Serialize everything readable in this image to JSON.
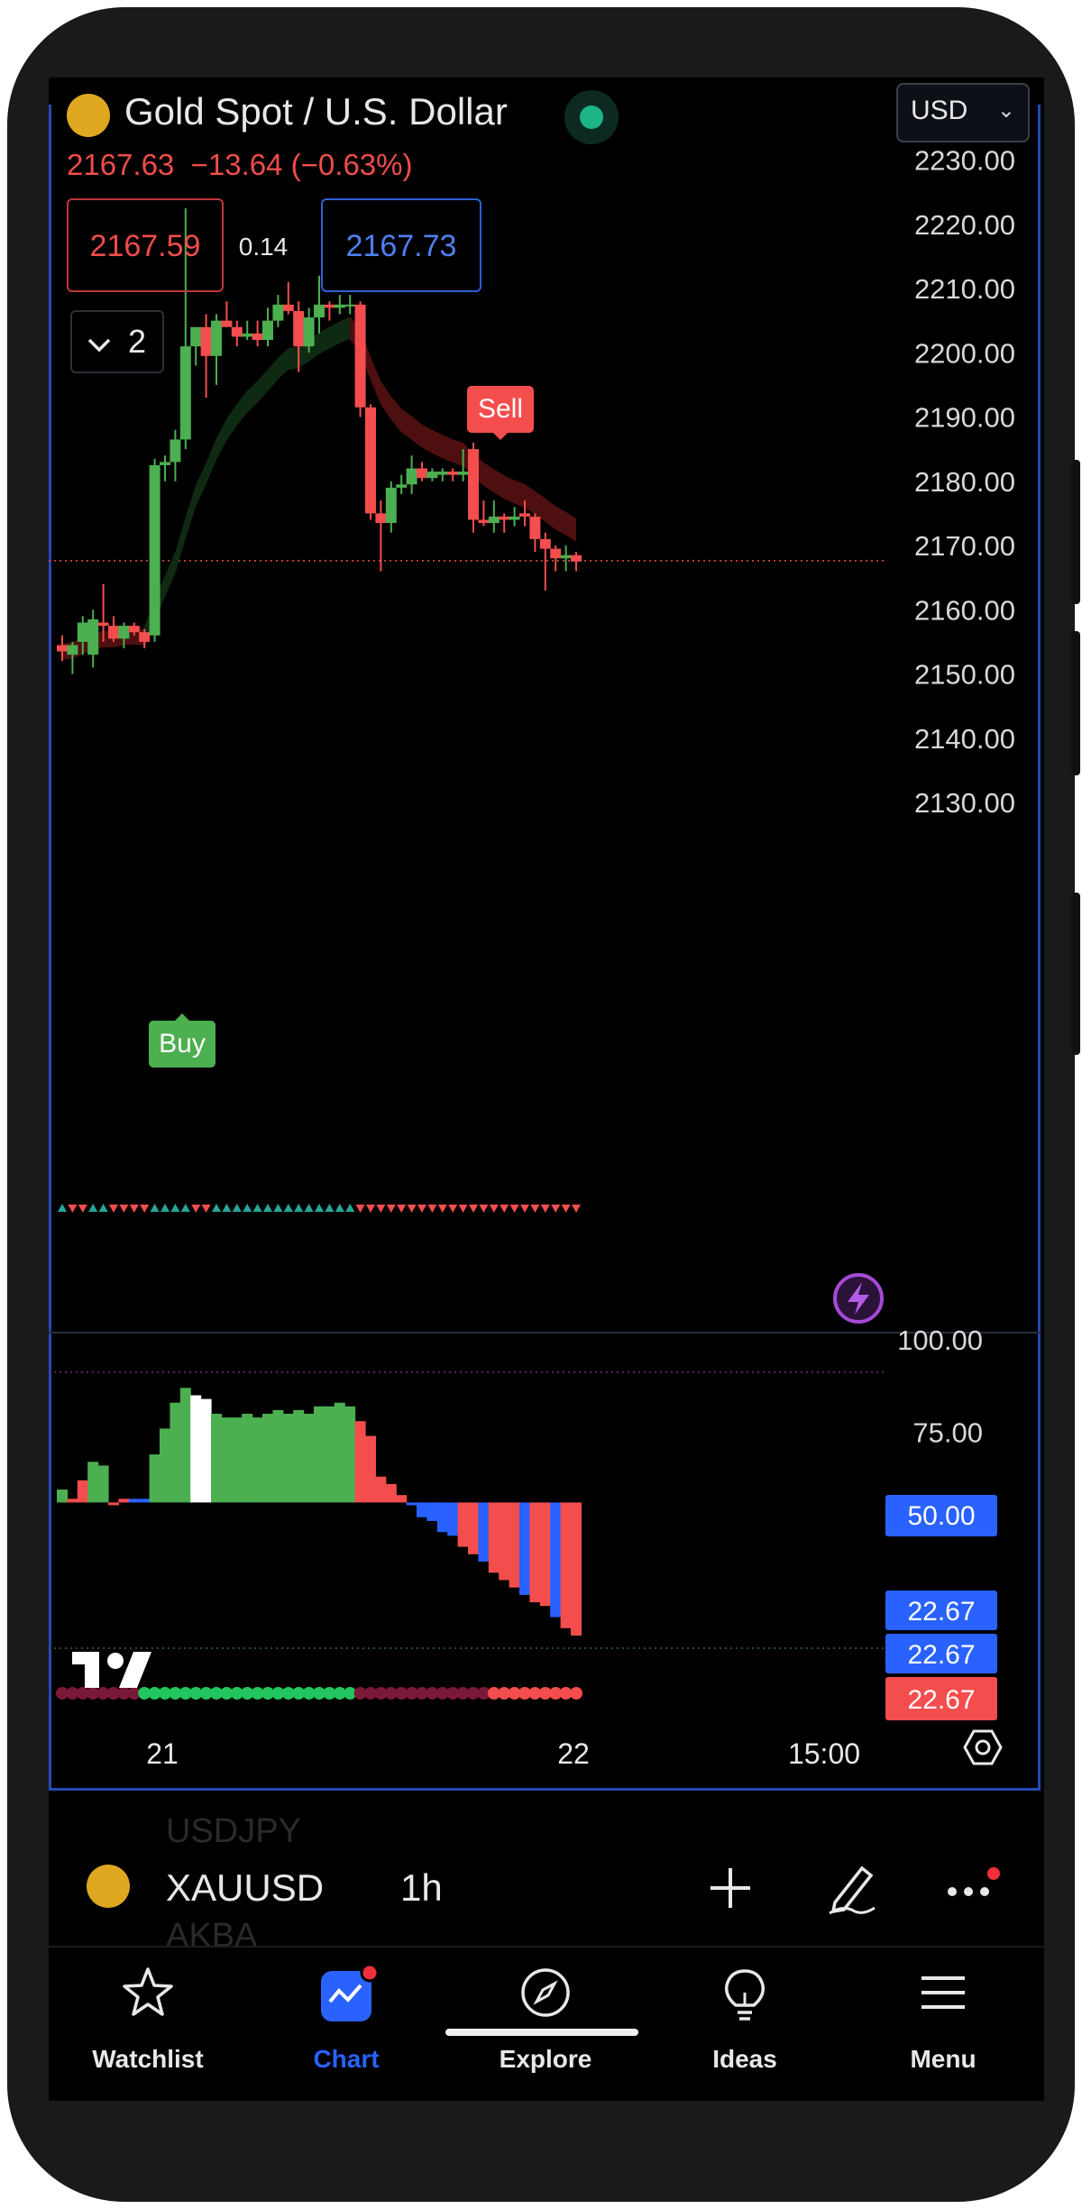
{
  "header": {
    "title": "Gold Spot / U.S. Dollar",
    "price": "2167.63",
    "change": "−13.64 (−0.63%)",
    "bid": "2167.59",
    "spread": "0.14",
    "ask": "2167.73",
    "indicator_count": "2",
    "currency": "USD"
  },
  "colors": {
    "up": "#4caf50",
    "down": "#f44d4d",
    "accent": "#2962ff",
    "frame": "#2649b4"
  },
  "main_axis": {
    "ticks": [
      "2230.00",
      "2220.00",
      "2210.00",
      "2200.00",
      "2190.00",
      "2180.00",
      "2170.00",
      "2160.00",
      "2150.00",
      "2140.00",
      "2130.00"
    ]
  },
  "signals": {
    "buy": "Buy",
    "sell": "Sell"
  },
  "osc_axis": {
    "ticks": [
      "100.00",
      "75.00"
    ],
    "badge_blue": "50.00",
    "badge_values": [
      "22.67",
      "22.67",
      "22.67"
    ]
  },
  "time_axis": {
    "labels": [
      "21",
      "22",
      "15:00"
    ]
  },
  "chart_data": {
    "type": "candlestick",
    "symbol": "XAUUSD",
    "interval": "1h",
    "ylim": [
      2125,
      2245
    ],
    "candles": [
      [
        2154.5,
        2156,
        2152,
        2153.5
      ],
      [
        2153,
        2155,
        2150,
        2154.5
      ],
      [
        2155,
        2159,
        2153,
        2158
      ],
      [
        2153,
        2160,
        2151,
        2158.5
      ],
      [
        2158,
        2164,
        2155,
        2157.5
      ],
      [
        2157.5,
        2159,
        2155,
        2155.5
      ],
      [
        2155.5,
        2158,
        2154,
        2157.5
      ],
      [
        2157.5,
        2158,
        2156,
        2156.5
      ],
      [
        2156.5,
        2157,
        2154,
        2155
      ],
      [
        2156,
        2183.5,
        2155,
        2182.5
      ],
      [
        2182.5,
        2184,
        2180,
        2183
      ],
      [
        2183,
        2188,
        2180,
        2186.5
      ],
      [
        2186.5,
        2222.5,
        2185,
        2201
      ],
      [
        2201,
        2204,
        2198,
        2204
      ],
      [
        2204,
        2206,
        2193,
        2199.5
      ],
      [
        2199.5,
        2206,
        2195,
        2205
      ],
      [
        2205,
        2208,
        2204,
        2204
      ],
      [
        2204,
        2205,
        2201,
        2202.5
      ],
      [
        2202.5,
        2205,
        2202,
        2203
      ],
      [
        2203,
        2205,
        2201,
        2202
      ],
      [
        2202,
        2207,
        2201,
        2205
      ],
      [
        2205,
        2209,
        2204,
        2207.5
      ],
      [
        2207.5,
        2211,
        2206,
        2206.5
      ],
      [
        2206.5,
        2208,
        2197,
        2201
      ],
      [
        2201,
        2207,
        2200,
        2205.5
      ],
      [
        2205.5,
        2212,
        2203,
        2207.5
      ],
      [
        2207.5,
        2208,
        2205,
        2207
      ],
      [
        2207,
        2209,
        2206,
        2207.5
      ],
      [
        2207.5,
        2209,
        2206,
        2207.5
      ],
      [
        2207.5,
        2208,
        2190,
        2191.5
      ],
      [
        2191.5,
        2192,
        2174,
        2175
      ],
      [
        2175,
        2177,
        2166,
        2173.5
      ],
      [
        2173.5,
        2180,
        2172,
        2179
      ],
      [
        2179,
        2181,
        2178,
        2179.5
      ],
      [
        2179.5,
        2184,
        2178,
        2182
      ],
      [
        2182,
        2183,
        2180,
        2180.5
      ],
      [
        2180.5,
        2182,
        2180,
        2181.5
      ],
      [
        2181,
        2182,
        2180,
        2181.5
      ],
      [
        2181.5,
        2182,
        2180,
        2181
      ],
      [
        2181,
        2185,
        2180,
        2181.5
      ],
      [
        2185,
        2186,
        2172,
        2174
      ],
      [
        2174,
        2177,
        2173,
        2173.5
      ],
      [
        2173.5,
        2177,
        2172,
        2174.5
      ],
      [
        2174.5,
        2175,
        2172,
        2174
      ],
      [
        2174,
        2176,
        2173,
        2174.5
      ],
      [
        2175,
        2177,
        2173,
        2174.5
      ],
      [
        2174.5,
        2175,
        2169,
        2171
      ],
      [
        2171,
        2172,
        2163,
        2169.5
      ],
      [
        2169.5,
        2170,
        2166,
        2168
      ],
      [
        2168,
        2170,
        2166,
        2168.5
      ],
      [
        2168.5,
        2169,
        2166,
        2167.5
      ]
    ],
    "histogram": [
      [
        59.5,
        0
      ],
      [
        57,
        1
      ],
      [
        62,
        1
      ],
      [
        67,
        0
      ],
      [
        66,
        0
      ],
      [
        56,
        1
      ],
      [
        57,
        1
      ],
      [
        57,
        2
      ],
      [
        57,
        2
      ],
      [
        69,
        0
      ],
      [
        76,
        0
      ],
      [
        83,
        0
      ],
      [
        87,
        0
      ],
      [
        85,
        3
      ],
      [
        84,
        3
      ],
      [
        80,
        0
      ],
      [
        79,
        0
      ],
      [
        79,
        0
      ],
      [
        80,
        0
      ],
      [
        79,
        0
      ],
      [
        80,
        0
      ],
      [
        81,
        0
      ],
      [
        80,
        0
      ],
      [
        81,
        0
      ],
      [
        80,
        0
      ],
      [
        82,
        0
      ],
      [
        82,
        0
      ],
      [
        83,
        0
      ],
      [
        82,
        0
      ],
      [
        78,
        1
      ],
      [
        74,
        1
      ],
      [
        63,
        1
      ],
      [
        61,
        1
      ],
      [
        58,
        1
      ],
      [
        56,
        2
      ],
      [
        52,
        2
      ],
      [
        51,
        2
      ],
      [
        48,
        2
      ],
      [
        47,
        2
      ],
      [
        44,
        1
      ],
      [
        42,
        1
      ],
      [
        40,
        2
      ],
      [
        37,
        1
      ],
      [
        35,
        1
      ],
      [
        33,
        1
      ],
      [
        31,
        2
      ],
      [
        29,
        1
      ],
      [
        28,
        1
      ],
      [
        25,
        2
      ],
      [
        22,
        1
      ],
      [
        20,
        1
      ]
    ]
  },
  "bottom_bar": {
    "symbol": "XAUUSD",
    "timeframe": "1h",
    "ghost_top": "USDJPY",
    "ghost_bottom": "AKBA"
  },
  "nav": {
    "items": [
      {
        "label": "Watchlist",
        "icon": "star-icon"
      },
      {
        "label": "Chart",
        "icon": "chart-icon"
      },
      {
        "label": "Explore",
        "icon": "compass-icon"
      },
      {
        "label": "Ideas",
        "icon": "lightbulb-icon"
      },
      {
        "label": "Menu",
        "icon": "hamburger-icon"
      }
    ]
  }
}
